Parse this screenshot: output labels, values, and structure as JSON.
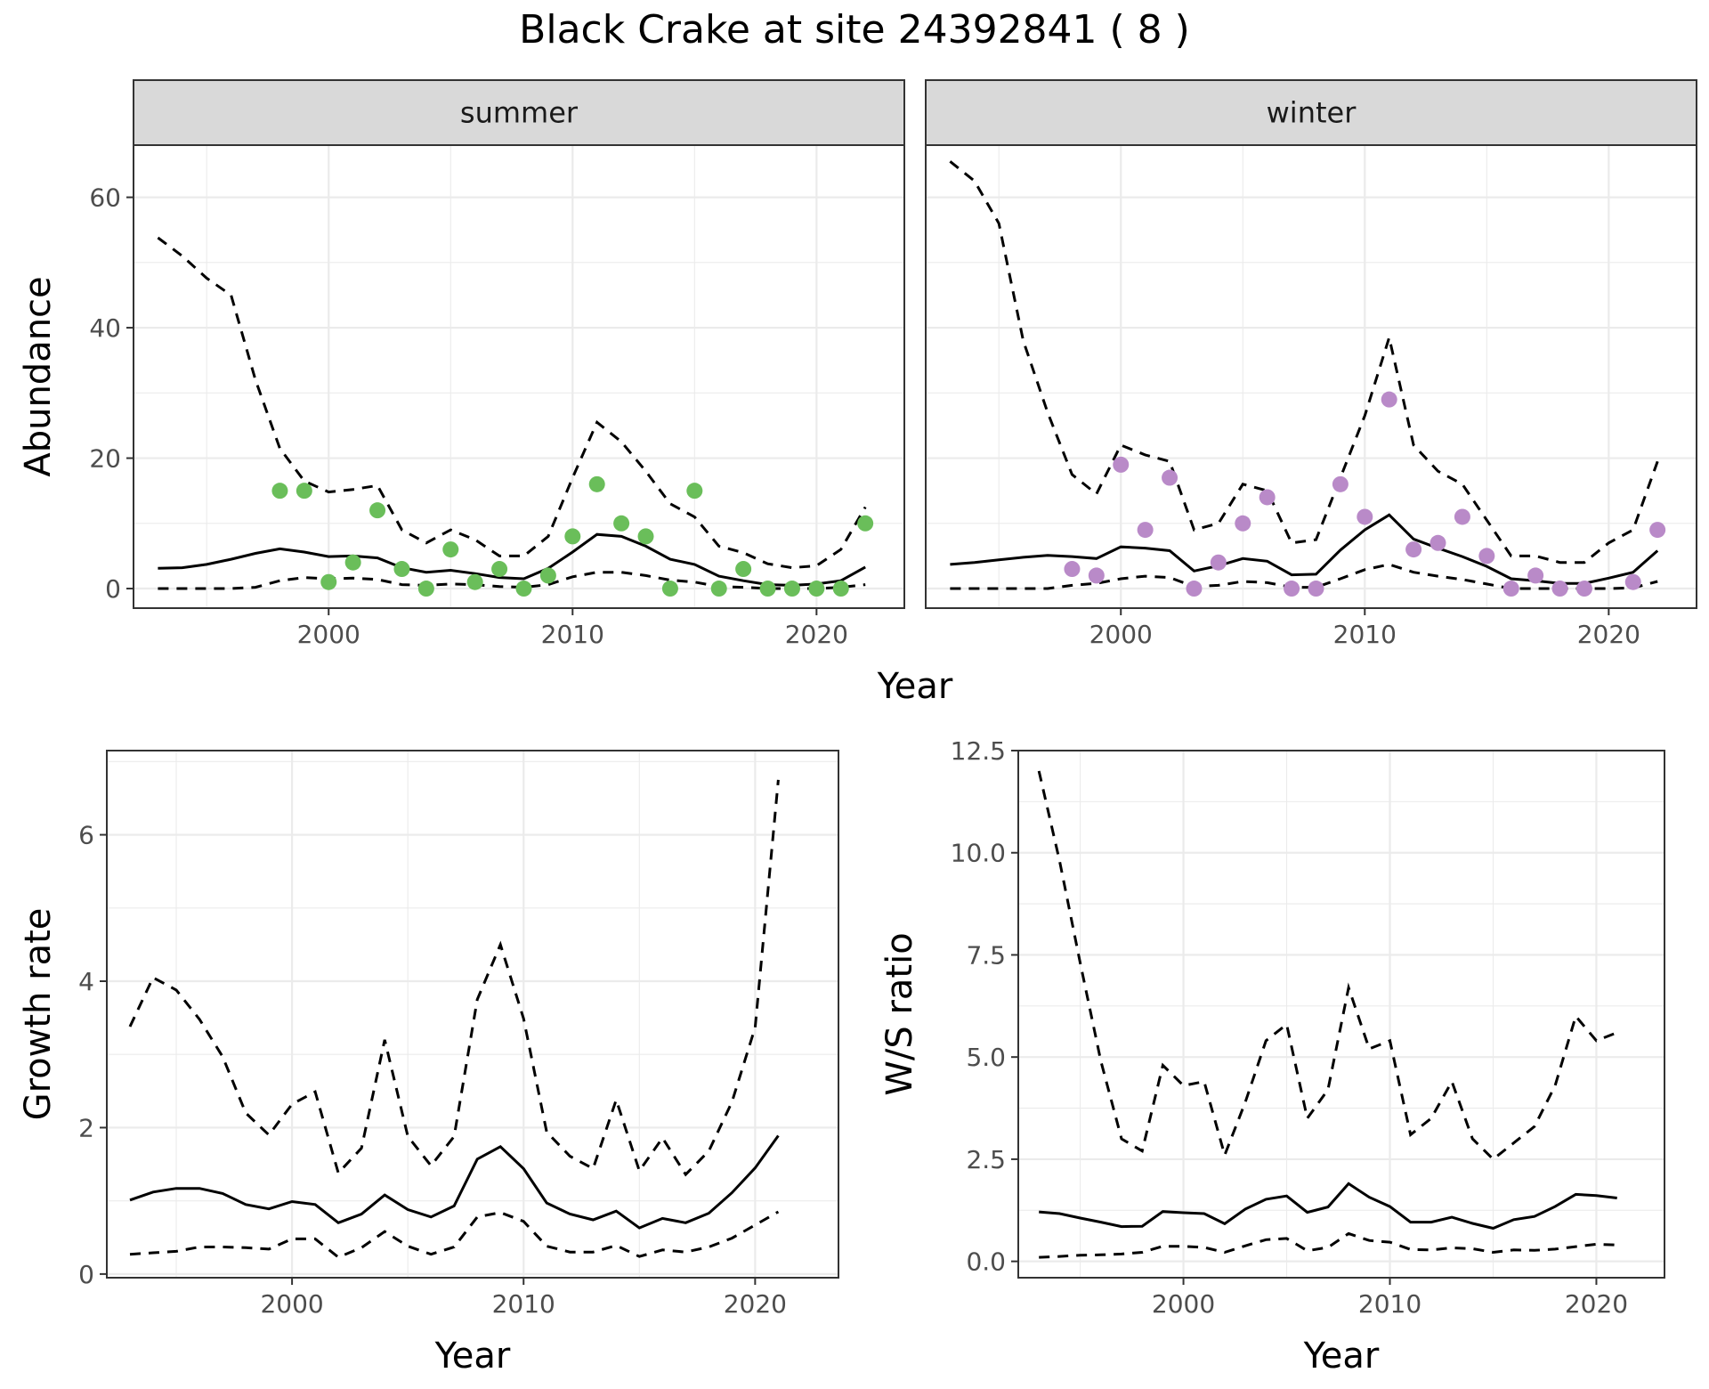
{
  "title": "Black Crake at site 24392841 ( 8 )",
  "colors": {
    "summer_points": "#6abe5a",
    "winter_points": "#b98ac8",
    "lines": "#000000"
  },
  "chart_data": [
    {
      "type": "line",
      "facet": "summer",
      "xlabel": "Year",
      "ylabel": "Abundance",
      "xlim": [
        1992,
        2023.6
      ],
      "ylim": [
        -3,
        68
      ],
      "x_ticks": [
        2000,
        2010,
        2020
      ],
      "y_ticks": [
        0,
        20,
        40,
        60
      ],
      "grid": true,
      "series": [
        {
          "style": "solid",
          "x": [
            1993,
            1994,
            1995,
            1996,
            1997,
            1998,
            1999,
            2000,
            2001,
            2002,
            2003,
            2004,
            2005,
            2006,
            2007,
            2008,
            2009,
            2010,
            2011,
            2012,
            2013,
            2014,
            2015,
            2016,
            2017,
            2018,
            2019,
            2020,
            2021,
            2022
          ],
          "y": [
            3.1,
            3.2,
            3.7,
            4.5,
            5.4,
            6.1,
            5.6,
            4.9,
            5.0,
            4.7,
            3.2,
            2.5,
            2.8,
            2.3,
            1.7,
            1.5,
            3.1,
            5.6,
            8.3,
            8.0,
            6.5,
            4.5,
            3.7,
            1.9,
            1.2,
            0.6,
            0.5,
            0.7,
            1.2,
            3.3
          ]
        },
        {
          "style": "dashed",
          "x": [
            1993,
            1994,
            1995,
            1996,
            1997,
            1998,
            1999,
            2000,
            2001,
            2002,
            2003,
            2004,
            2005,
            2006,
            2007,
            2008,
            2009,
            2010,
            2011,
            2012,
            2013,
            2014,
            2015,
            2016,
            2017,
            2018,
            2019,
            2020,
            2021,
            2022
          ],
          "y": [
            53.8,
            51.0,
            47.6,
            45.0,
            32.0,
            21.5,
            16.5,
            14.8,
            15.2,
            15.8,
            9.0,
            7.0,
            9.0,
            7.5,
            5.0,
            5.0,
            8.0,
            17.0,
            25.5,
            22.5,
            18.0,
            13.0,
            11.0,
            6.5,
            5.5,
            3.8,
            3.2,
            3.5,
            6.0,
            12.5
          ]
        },
        {
          "style": "dashed",
          "x": [
            1993,
            1994,
            1995,
            1996,
            1997,
            1998,
            1999,
            2000,
            2001,
            2002,
            2003,
            2004,
            2005,
            2006,
            2007,
            2008,
            2009,
            2010,
            2011,
            2012,
            2013,
            2014,
            2015,
            2016,
            2017,
            2018,
            2019,
            2020,
            2021,
            2022
          ],
          "y": [
            0.0,
            0.0,
            0.0,
            0.0,
            0.2,
            1.2,
            1.7,
            1.5,
            1.6,
            1.4,
            0.6,
            0.5,
            0.7,
            0.6,
            0.3,
            0.2,
            0.6,
            1.8,
            2.5,
            2.5,
            2.0,
            1.3,
            1.0,
            0.3,
            0.2,
            0.0,
            0.0,
            0.0,
            0.2,
            0.6
          ]
        }
      ],
      "points": {
        "x": [
          1998,
          1999,
          2000,
          2001,
          2002,
          2003,
          2004,
          2005,
          2006,
          2007,
          2008,
          2009,
          2010,
          2011,
          2012,
          2013,
          2014,
          2015,
          2016,
          2017,
          2018,
          2019,
          2020,
          2021,
          2022
        ],
        "y": [
          15,
          15,
          1,
          4,
          12,
          3,
          0,
          6,
          1,
          3,
          0,
          2,
          8,
          16,
          10,
          8,
          0,
          15,
          0,
          3,
          0,
          0,
          0,
          0,
          10
        ]
      }
    },
    {
      "type": "line",
      "facet": "winter",
      "xlabel": "Year",
      "ylabel": "Abundance",
      "xlim": [
        1992,
        2023.6
      ],
      "ylim": [
        -3,
        68
      ],
      "x_ticks": [
        2000,
        2010,
        2020
      ],
      "y_ticks": [
        0,
        20,
        40,
        60
      ],
      "grid": true,
      "series": [
        {
          "style": "solid",
          "x": [
            1993,
            1994,
            1995,
            1996,
            1997,
            1998,
            1999,
            2000,
            2001,
            2002,
            2003,
            2004,
            2005,
            2006,
            2007,
            2008,
            2009,
            2010,
            2011,
            2012,
            2013,
            2014,
            2015,
            2016,
            2017,
            2018,
            2019,
            2020,
            2021,
            2022
          ],
          "y": [
            3.7,
            4.0,
            4.4,
            4.8,
            5.1,
            4.9,
            4.6,
            6.4,
            6.2,
            5.8,
            2.7,
            3.5,
            4.6,
            4.2,
            2.1,
            2.2,
            5.9,
            9.0,
            11.3,
            7.6,
            6.2,
            4.9,
            3.4,
            1.5,
            1.2,
            0.8,
            0.8,
            1.6,
            2.5,
            5.8
          ]
        },
        {
          "style": "dashed",
          "x": [
            1993,
            1994,
            1995,
            1996,
            1997,
            1998,
            1999,
            2000,
            2001,
            2002,
            2003,
            2004,
            2005,
            2006,
            2007,
            2008,
            2009,
            2010,
            2011,
            2012,
            2013,
            2014,
            2015,
            2016,
            2017,
            2018,
            2019,
            2020,
            2021,
            2022
          ],
          "y": [
            65.5,
            62.5,
            56.0,
            38.0,
            27.0,
            17.5,
            14.5,
            22.0,
            20.5,
            19.5,
            9.0,
            10.0,
            16.0,
            15.0,
            7.0,
            7.5,
            17.0,
            26.5,
            38.5,
            22.0,
            18.0,
            16.0,
            10.5,
            5.0,
            5.0,
            4.0,
            4.0,
            7.0,
            9.0,
            19.5
          ]
        },
        {
          "style": "dashed",
          "x": [
            1993,
            1994,
            1995,
            1996,
            1997,
            1998,
            1999,
            2000,
            2001,
            2002,
            2003,
            2004,
            2005,
            2006,
            2007,
            2008,
            2009,
            2010,
            2011,
            2012,
            2013,
            2014,
            2015,
            2016,
            2017,
            2018,
            2019,
            2020,
            2021,
            2022
          ],
          "y": [
            0.0,
            0.0,
            0.0,
            0.0,
            0.0,
            0.5,
            0.8,
            1.5,
            1.9,
            1.7,
            0.3,
            0.5,
            1.1,
            0.9,
            0.2,
            0.2,
            1.5,
            2.9,
            3.7,
            2.5,
            1.9,
            1.4,
            0.7,
            0.0,
            0.0,
            0.0,
            0.0,
            0.0,
            0.1,
            1.1
          ]
        }
      ],
      "points": {
        "x": [
          1998,
          1999,
          2000,
          2001,
          2002,
          2003,
          2004,
          2005,
          2006,
          2007,
          2008,
          2009,
          2010,
          2011,
          2012,
          2013,
          2014,
          2015,
          2016,
          2017,
          2018,
          2019,
          2021,
          2022
        ],
        "y": [
          3,
          2,
          19,
          9,
          17,
          0,
          4,
          10,
          14,
          0,
          0,
          16,
          11,
          29,
          6,
          7,
          11,
          5,
          0,
          2,
          0,
          0,
          1,
          9
        ]
      }
    },
    {
      "type": "line",
      "xlabel": "Year",
      "ylabel": "Growth rate",
      "xlim": [
        1992,
        2023.6
      ],
      "ylim": [
        -0.05,
        7.15
      ],
      "x_ticks": [
        2000,
        2010,
        2020
      ],
      "y_ticks": [
        0,
        2,
        4,
        6
      ],
      "grid": true,
      "series": [
        {
          "style": "solid",
          "x": [
            1993,
            1994,
            1995,
            1996,
            1997,
            1998,
            1999,
            2000,
            2001,
            2002,
            2003,
            2004,
            2005,
            2006,
            2007,
            2008,
            2009,
            2010,
            2011,
            2012,
            2013,
            2014,
            2015,
            2016,
            2017,
            2018,
            2019,
            2020,
            2021
          ],
          "y": [
            1.01,
            1.12,
            1.17,
            1.17,
            1.1,
            0.95,
            0.89,
            0.99,
            0.95,
            0.7,
            0.82,
            1.08,
            0.88,
            0.78,
            0.93,
            1.57,
            1.74,
            1.44,
            0.97,
            0.82,
            0.74,
            0.86,
            0.63,
            0.76,
            0.7,
            0.83,
            1.11,
            1.45,
            1.89
          ]
        },
        {
          "style": "dashed",
          "x": [
            1993,
            1994,
            1995,
            1996,
            1997,
            1998,
            1999,
            2000,
            2001,
            2002,
            2003,
            2004,
            2005,
            2006,
            2007,
            2008,
            2009,
            2010,
            2011,
            2012,
            2013,
            2014,
            2015,
            2016,
            2017,
            2018,
            2019,
            2020,
            2021
          ],
          "y": [
            3.38,
            4.05,
            3.88,
            3.48,
            2.97,
            2.2,
            1.9,
            2.32,
            2.49,
            1.38,
            1.72,
            3.2,
            1.88,
            1.48,
            1.88,
            3.75,
            4.5,
            3.49,
            1.94,
            1.61,
            1.44,
            2.38,
            1.41,
            1.86,
            1.36,
            1.68,
            2.35,
            3.37,
            6.75
          ]
        },
        {
          "style": "dashed",
          "x": [
            1993,
            1994,
            1995,
            1996,
            1997,
            1998,
            1999,
            2000,
            2001,
            2002,
            2003,
            2004,
            2005,
            2006,
            2007,
            2008,
            2009,
            2010,
            2011,
            2012,
            2013,
            2014,
            2015,
            2016,
            2017,
            2018,
            2019,
            2020,
            2021
          ],
          "y": [
            0.27,
            0.29,
            0.31,
            0.37,
            0.37,
            0.36,
            0.34,
            0.48,
            0.48,
            0.23,
            0.36,
            0.58,
            0.38,
            0.27,
            0.37,
            0.78,
            0.84,
            0.72,
            0.38,
            0.3,
            0.3,
            0.39,
            0.24,
            0.33,
            0.3,
            0.37,
            0.49,
            0.67,
            0.85
          ]
        }
      ]
    },
    {
      "type": "line",
      "xlabel": "Year",
      "ylabel": "W/S ratio",
      "xlim": [
        1992,
        2023.3
      ],
      "ylim": [
        -0.4,
        12.5
      ],
      "x_ticks": [
        2000,
        2010,
        2020
      ],
      "y_ticks": [
        0.0,
        2.5,
        5.0,
        7.5,
        10.0,
        12.5
      ],
      "y_tick_labels": [
        "0.0",
        "2.5",
        "5.0",
        "7.5",
        "10.0",
        "12.5"
      ],
      "grid": true,
      "series": [
        {
          "style": "solid",
          "x": [
            1993,
            1994,
            1995,
            1996,
            1997,
            1998,
            1999,
            2000,
            2001,
            2002,
            2003,
            2004,
            2005,
            2006,
            2007,
            2008,
            2009,
            2010,
            2011,
            2012,
            2013,
            2014,
            2015,
            2016,
            2017,
            2018,
            2019,
            2020,
            2021
          ],
          "y": [
            1.21,
            1.17,
            1.06,
            0.96,
            0.85,
            0.86,
            1.22,
            1.19,
            1.17,
            0.92,
            1.28,
            1.52,
            1.6,
            1.2,
            1.33,
            1.9,
            1.57,
            1.34,
            0.96,
            0.96,
            1.08,
            0.93,
            0.81,
            1.02,
            1.1,
            1.34,
            1.64,
            1.61,
            1.55
          ]
        },
        {
          "style": "dashed",
          "x": [
            1993,
            1994,
            1995,
            1996,
            1997,
            1998,
            1999,
            2000,
            2001,
            2002,
            2003,
            2004,
            2005,
            2006,
            2007,
            2008,
            2009,
            2010,
            2011,
            2012,
            2013,
            2014,
            2015,
            2016,
            2017,
            2018,
            2019,
            2020,
            2021
          ],
          "y": [
            12.0,
            9.8,
            7.3,
            4.9,
            3.0,
            2.7,
            4.8,
            4.3,
            4.4,
            2.6,
            3.9,
            5.4,
            5.8,
            3.5,
            4.2,
            6.7,
            5.2,
            5.4,
            3.1,
            3.5,
            4.4,
            3.0,
            2.5,
            2.9,
            3.3,
            4.3,
            6.0,
            5.4,
            5.6
          ]
        },
        {
          "style": "dashed",
          "x": [
            1993,
            1994,
            1995,
            1996,
            1997,
            1998,
            1999,
            2000,
            2001,
            2002,
            2003,
            2004,
            2005,
            2006,
            2007,
            2008,
            2009,
            2010,
            2011,
            2012,
            2013,
            2014,
            2015,
            2016,
            2017,
            2018,
            2019,
            2020,
            2021
          ],
          "y": [
            0.1,
            0.12,
            0.15,
            0.16,
            0.18,
            0.22,
            0.37,
            0.37,
            0.34,
            0.22,
            0.38,
            0.53,
            0.56,
            0.26,
            0.34,
            0.68,
            0.51,
            0.47,
            0.29,
            0.28,
            0.33,
            0.31,
            0.22,
            0.28,
            0.27,
            0.3,
            0.36,
            0.42,
            0.4
          ]
        }
      ]
    }
  ]
}
